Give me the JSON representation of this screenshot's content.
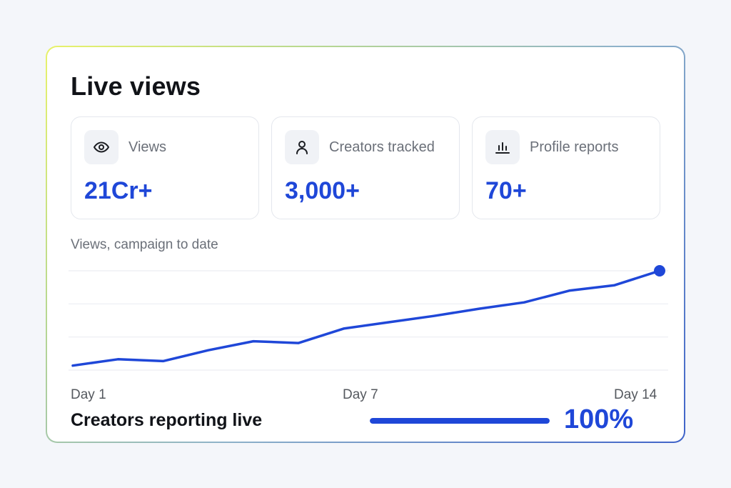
{
  "card": {
    "title": "Live views"
  },
  "stats": [
    {
      "label": "Views",
      "value": "21Cr+",
      "icon": "eye-icon"
    },
    {
      "label": "Creators tracked",
      "value": "3,000+",
      "icon": "user-icon"
    },
    {
      "label": "Profile reports",
      "value": "70+",
      "icon": "bar-chart-icon"
    }
  ],
  "chart_label": "Views, campaign to date",
  "chart_data": {
    "type": "line",
    "x_labels": [
      "Day 1",
      "Day 7",
      "Day 14"
    ],
    "x": [
      1,
      2,
      3,
      4,
      5,
      6,
      7,
      8,
      9,
      10,
      11,
      12,
      13,
      14
    ],
    "series": [
      {
        "values": [
          5,
          12,
          10,
          22,
          32,
          30,
          46,
          53,
          60,
          68,
          75,
          88,
          94,
          110
        ]
      }
    ],
    "ylim": [
      0,
      110
    ],
    "grid": true,
    "color": "#1f47d8"
  },
  "progress": {
    "label": "Creators reporting live",
    "value_text": "100%",
    "fraction": 1.0
  },
  "colors": {
    "accent": "#1f47d8",
    "border_gradient_start": "#e8f26a",
    "border_gradient_end": "#3f63c9"
  }
}
